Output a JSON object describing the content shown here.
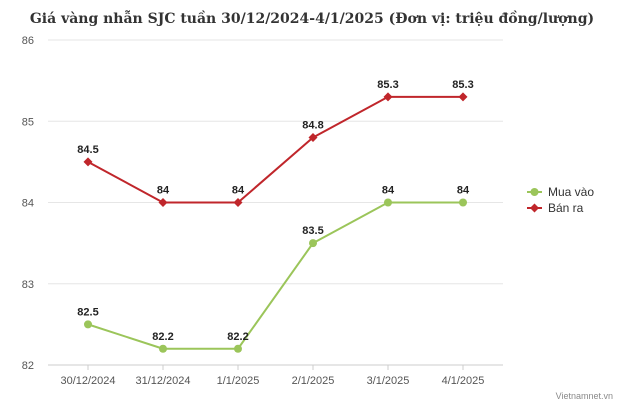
{
  "chart_data": {
    "type": "line",
    "title": "Giá vàng nhẫn SJC tuần 30/12/2024-4/1/2025 (Đơn vị: triệu đồng/lượng)",
    "categories": [
      "30/12/2024",
      "31/12/2024",
      "1/1/2025",
      "2/1/2025",
      "3/1/2025",
      "4/1/2025"
    ],
    "series": [
      {
        "name": "Mua vào",
        "values": [
          82.5,
          82.2,
          82.2,
          83.5,
          84,
          84
        ],
        "labels": [
          "82.5",
          "82.2",
          "82.2",
          "83.5",
          "84",
          "84"
        ],
        "color": "#9bc55a",
        "marker": "circle"
      },
      {
        "name": "Bán ra",
        "values": [
          84.5,
          84,
          84,
          84.8,
          85.3,
          85.3
        ],
        "labels": [
          "84.5",
          "84",
          "84",
          "84.8",
          "85.3",
          "85.3"
        ],
        "color": "#c0262b",
        "marker": "diamond"
      }
    ],
    "yticks": [
      "82",
      "83",
      "84",
      "85",
      "86"
    ],
    "ylim": [
      82,
      86
    ],
    "grid": true,
    "legend_position": "right",
    "xlabel": "",
    "ylabel": ""
  },
  "credit": "Vietnamnet.vn",
  "colors": {
    "grid": "#e6e6e6",
    "axis": "#cccccc"
  }
}
